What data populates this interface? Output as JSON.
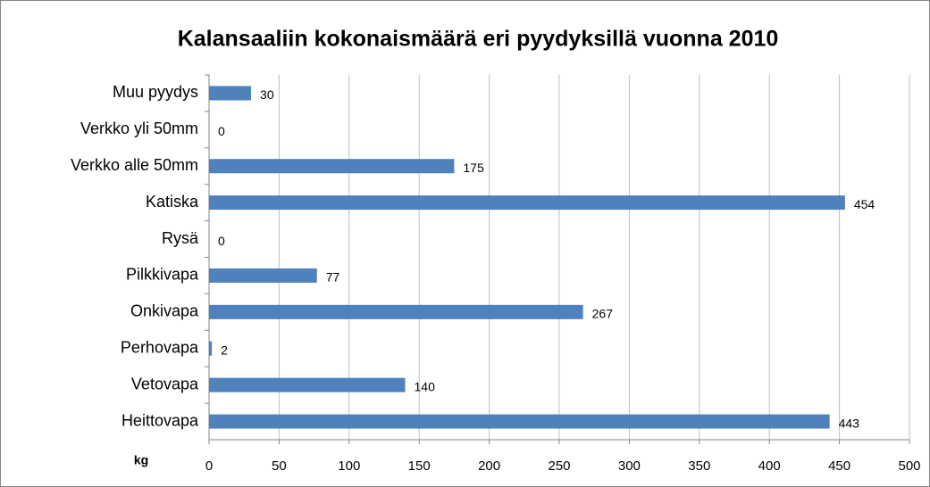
{
  "chart_data": {
    "type": "bar",
    "orientation": "horizontal",
    "title": "Kalansaaliin kokonaismäärä eri pyydyksillä vuonna 2010",
    "x_label": "kg",
    "categories": [
      "Muu pyydys",
      "Verkko yli 50mm",
      "Verkko alle 50mm",
      "Katiska",
      "Rysä",
      "Pilkkivapa",
      "Onkivapa",
      "Perhovapa",
      "Vetovapa",
      "Heittovapa"
    ],
    "values": [
      30,
      0,
      175,
      454,
      0,
      77,
      267,
      2,
      140,
      443
    ],
    "color": "#4f81bd",
    "xlim": [
      0,
      500
    ],
    "xticks": [
      0,
      50,
      100,
      150,
      200,
      250,
      300,
      350,
      400,
      450,
      500
    ],
    "grid": true
  }
}
